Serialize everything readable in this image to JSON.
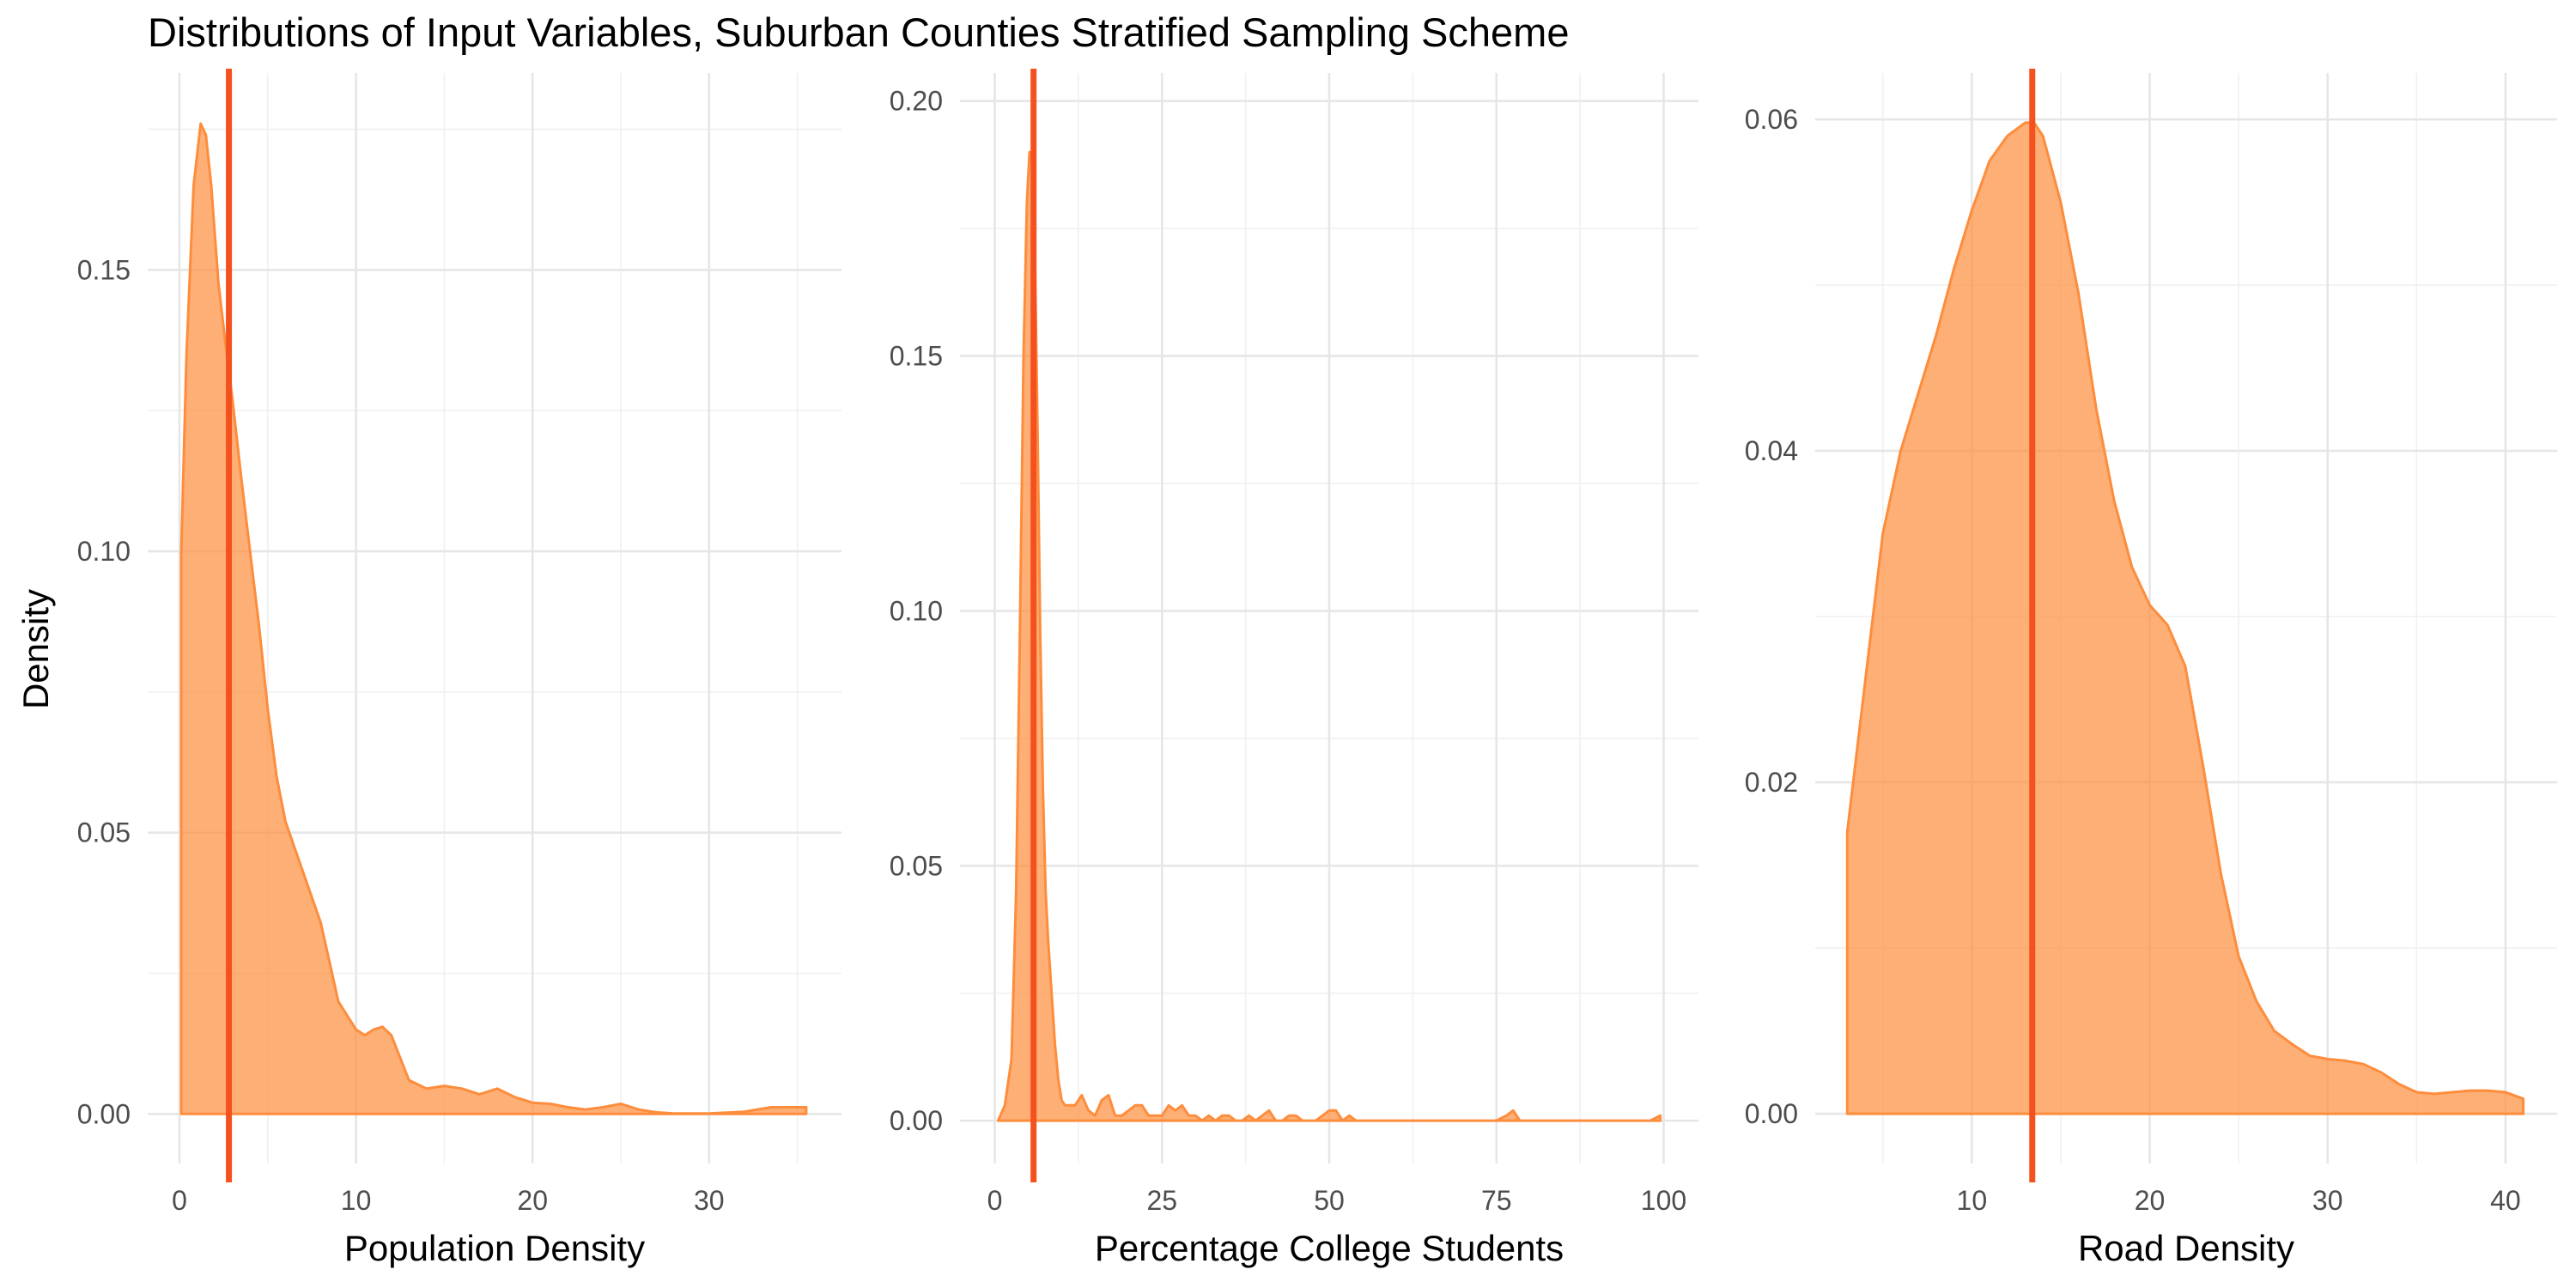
{
  "title": "Distributions of Input Variables, Suburban Counties Stratified Sampling Scheme",
  "shared_ylabel": "Density",
  "colors": {
    "fill": "#fd8d3c",
    "fill_opacity": 0.7,
    "outline": "#fd8d3c",
    "vline": "#f4511e",
    "grid": "#ebebeb"
  },
  "chart_data": [
    {
      "type": "area",
      "name": "population-density",
      "xlabel": "Population Density",
      "xlim": [
        -1.8,
        37.5
      ],
      "ylim": [
        -0.0088,
        0.185
      ],
      "xticks": [
        0,
        10,
        20,
        30
      ],
      "xtick_labels": [
        "0",
        "10",
        "20",
        "30"
      ],
      "yticks": [
        0,
        0.05,
        0.1,
        0.15
      ],
      "ytick_labels": [
        "0.00",
        "0.05",
        "0.10",
        "0.15"
      ],
      "vline": 2.8,
      "curve": {
        "x": [
          0.1,
          0.4,
          0.8,
          1.2,
          1.5,
          1.8,
          2.2,
          2.6,
          3.0,
          3.5,
          4.0,
          4.5,
          5.0,
          5.5,
          6.0,
          7.0,
          8.0,
          9.0,
          10.0,
          10.5,
          11.0,
          11.5,
          12.0,
          12.5,
          13.0,
          14.0,
          15.0,
          16.0,
          17.0,
          18.0,
          19.0,
          20.0,
          21.0,
          22.0,
          23.0,
          24.0,
          25.0,
          26.0,
          27.0,
          28.0,
          30.0,
          32.0,
          33.5,
          35.5
        ],
        "y": [
          0.1,
          0.135,
          0.165,
          0.176,
          0.174,
          0.165,
          0.148,
          0.137,
          0.127,
          0.113,
          0.1,
          0.087,
          0.072,
          0.06,
          0.052,
          0.043,
          0.034,
          0.02,
          0.015,
          0.014,
          0.015,
          0.0155,
          0.014,
          0.01,
          0.006,
          0.0045,
          0.005,
          0.0045,
          0.0035,
          0.0045,
          0.003,
          0.002,
          0.0018,
          0.0012,
          0.0008,
          0.0012,
          0.0018,
          0.0008,
          0.0003,
          0.0001,
          0.0001,
          0.0004,
          0.0012,
          0.0012
        ]
      }
    },
    {
      "type": "area",
      "name": "percentage-college-students",
      "xlabel": "Percentage College Students",
      "xlim": [
        -5.2,
        105.2
      ],
      "ylim": [
        -0.0084,
        0.2055
      ],
      "xticks": [
        0,
        25,
        50,
        75,
        100
      ],
      "xtick_labels": [
        "0",
        "25",
        "50",
        "75",
        "100"
      ],
      "yticks": [
        0,
        0.05,
        0.1,
        0.15,
        0.2
      ],
      "ytick_labels": [
        "0.00",
        "0.05",
        "0.10",
        "0.15",
        "0.20"
      ],
      "vline": 5.8,
      "curve": {
        "x": [
          0.5,
          1.5,
          2.5,
          3.2,
          3.8,
          4.3,
          4.8,
          5.2,
          5.6,
          6.0,
          6.4,
          6.8,
          7.2,
          7.6,
          8.0,
          8.5,
          9.0,
          9.5,
          10.0,
          10.5,
          11.0,
          12.0,
          13.0,
          14.0,
          15.0,
          16.0,
          17.0,
          18.0,
          19.0,
          20.0,
          21.0,
          22.0,
          23.0,
          24.0,
          25.0,
          26.0,
          27.0,
          28.0,
          29.0,
          30.0,
          31.0,
          32.0,
          33.0,
          34.0,
          35.0,
          36.0,
          37.0,
          38.0,
          39.0,
          40.0,
          41.0,
          42.0,
          43.0,
          44.0,
          45.0,
          46.0,
          47.0,
          48.0,
          49.0,
          50.0,
          51.0,
          52.0,
          53.0,
          54.0,
          55.0,
          60.0,
          65.0,
          70.0,
          75.0,
          76.5,
          77.5,
          78.5,
          85.0,
          92.0,
          98.0,
          99.5
        ],
        "y": [
          0.0,
          0.003,
          0.012,
          0.045,
          0.1,
          0.15,
          0.18,
          0.19,
          0.188,
          0.17,
          0.135,
          0.095,
          0.065,
          0.045,
          0.035,
          0.025,
          0.015,
          0.008,
          0.004,
          0.003,
          0.003,
          0.003,
          0.005,
          0.002,
          0.001,
          0.004,
          0.005,
          0.001,
          0.001,
          0.002,
          0.003,
          0.003,
          0.001,
          0.001,
          0.001,
          0.003,
          0.002,
          0.003,
          0.001,
          0.001,
          0.0,
          0.001,
          0.0,
          0.001,
          0.001,
          0.0,
          0.0,
          0.001,
          0.0,
          0.001,
          0.002,
          0.0,
          0.0,
          0.001,
          0.001,
          0.0,
          0.0,
          0.0,
          0.001,
          0.002,
          0.002,
          0.0,
          0.001,
          0.0,
          0.0,
          0.0,
          0.0,
          0.0,
          0.0,
          0.001,
          0.002,
          0.0,
          0.0,
          0.0,
          0.0,
          0.001
        ]
      }
    },
    {
      "type": "area",
      "name": "road-density",
      "xlabel": "Road Density",
      "xlim": [
        1.2,
        42.9
      ],
      "ylim": [
        -0.003,
        0.0628
      ],
      "xticks": [
        10,
        20,
        30,
        40
      ],
      "xtick_labels": [
        "10",
        "20",
        "30",
        "40"
      ],
      "yticks": [
        0,
        0.02,
        0.04,
        0.06
      ],
      "ytick_labels": [
        "0.00",
        "0.02",
        "0.04",
        "0.06"
      ],
      "vline": 13.4,
      "curve": {
        "x": [
          3.0,
          4.0,
          5.0,
          6.0,
          7.0,
          8.0,
          9.0,
          10.0,
          11.0,
          12.0,
          13.0,
          13.5,
          14.0,
          15.0,
          16.0,
          17.0,
          18.0,
          19.0,
          20.0,
          21.0,
          22.0,
          23.0,
          24.0,
          25.0,
          26.0,
          27.0,
          28.0,
          29.0,
          30.0,
          31.0,
          32.0,
          33.0,
          34.0,
          35.0,
          36.0,
          37.0,
          38.0,
          39.0,
          40.0,
          41.0
        ],
        "y": [
          0.017,
          0.026,
          0.035,
          0.04,
          0.0435,
          0.047,
          0.051,
          0.0545,
          0.0575,
          0.059,
          0.0598,
          0.0598,
          0.059,
          0.055,
          0.0495,
          0.0425,
          0.037,
          0.033,
          0.0307,
          0.0295,
          0.027,
          0.021,
          0.0145,
          0.0095,
          0.0068,
          0.005,
          0.0042,
          0.0035,
          0.0033,
          0.0032,
          0.003,
          0.0025,
          0.0018,
          0.0013,
          0.0012,
          0.0013,
          0.0014,
          0.0014,
          0.0013,
          0.0009
        ]
      }
    }
  ]
}
